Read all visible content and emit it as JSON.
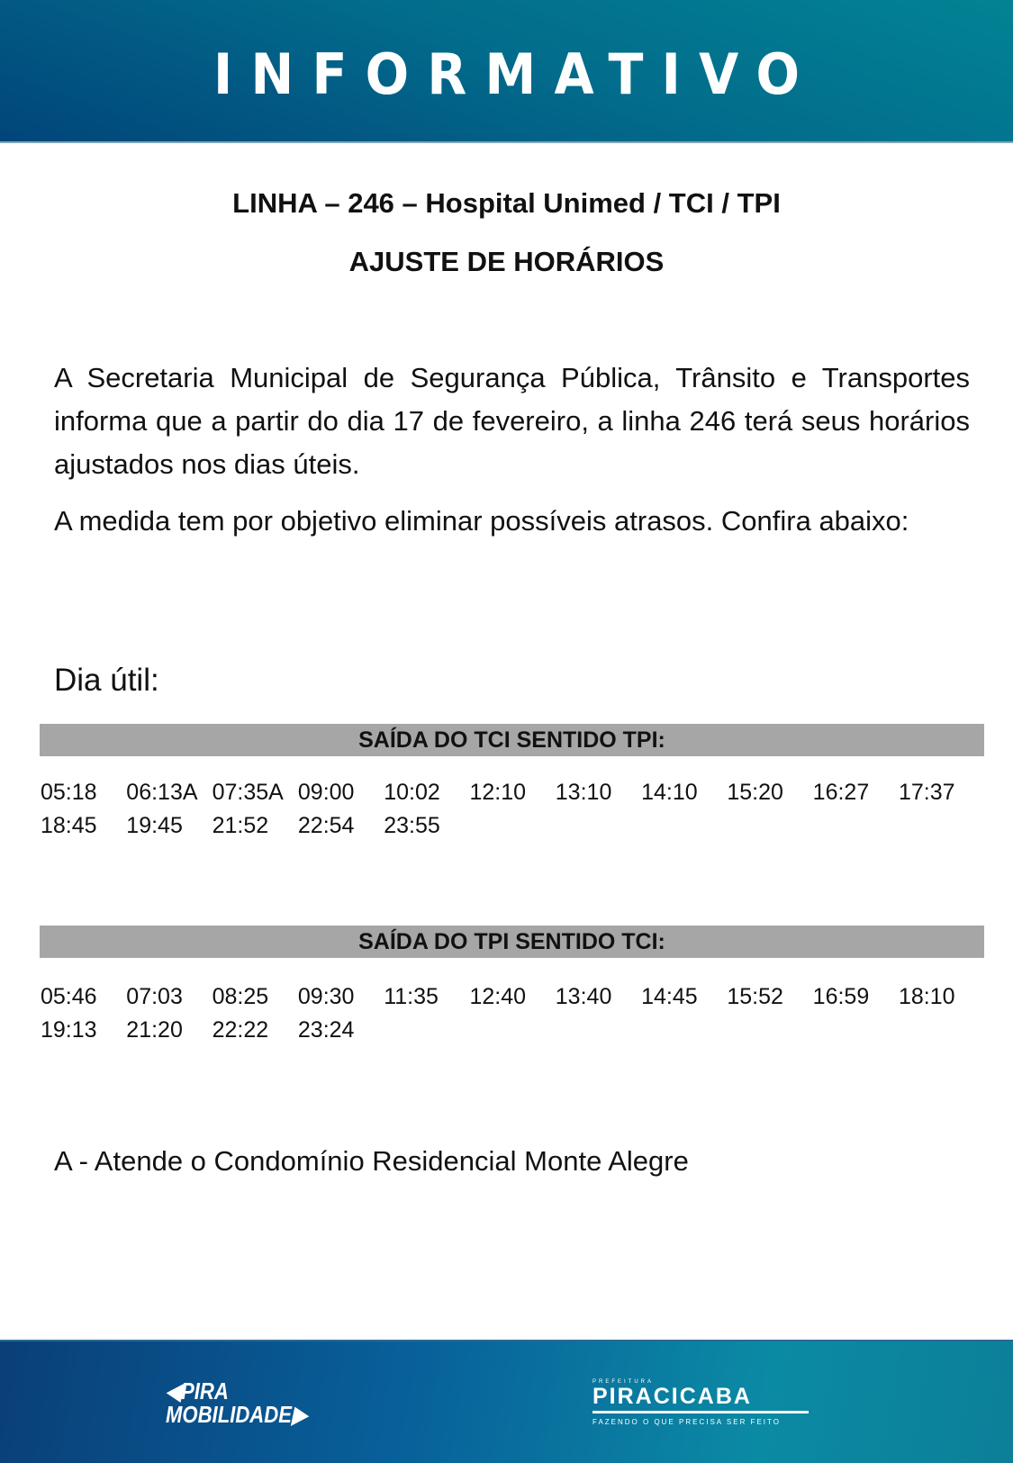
{
  "header": {
    "title": "INFORMATIVO"
  },
  "heading": {
    "line": "LINHA – 246 – Hospital Unimed / TCI / TPI",
    "subtitle": "AJUSTE DE HORÁRIOS"
  },
  "body": {
    "p1": "A Secretaria Municipal de Segurança Pública, Trânsito e Transportes informa que a partir do dia 17 de fevereiro, a linha 246 terá seus horários ajustados nos dias úteis.",
    "p2": "A medida tem por objetivo eliminar possíveis atrasos. Confira abaixo:"
  },
  "schedule": {
    "day_label": "Dia útil:",
    "tables": [
      {
        "header": "SAÍDA DO TCI SENTIDO TPI:",
        "times": [
          "05:18",
          "06:13A",
          "07:35A",
          "09:00",
          "10:02",
          "12:10",
          "13:10",
          "14:10",
          "15:20",
          "16:27",
          "17:37",
          "18:45",
          "19:45",
          "21:52",
          "22:54",
          "23:55"
        ]
      },
      {
        "header": "SAÍDA DO TPI SENTIDO TCI:",
        "times": [
          "05:46",
          "07:03",
          "08:25",
          "09:30",
          "11:35",
          "12:40",
          "13:40",
          "14:45",
          "15:52",
          "16:59",
          "18:10",
          "19:13",
          "21:20",
          "22:22",
          "23:24"
        ]
      }
    ]
  },
  "note": "A - Atende o Condomínio Residencial Monte Alegre",
  "footer": {
    "logo_left": [
      "PIRA",
      "MOBILIDADE"
    ],
    "logo_right": {
      "small": "PREFEITURA",
      "name": "PIRACICABA",
      "tagline": "FAZENDO O QUE PRECISA SER FEITO"
    }
  },
  "colors": {
    "header": "#026d8c",
    "bar": "#a6a6a6"
  }
}
